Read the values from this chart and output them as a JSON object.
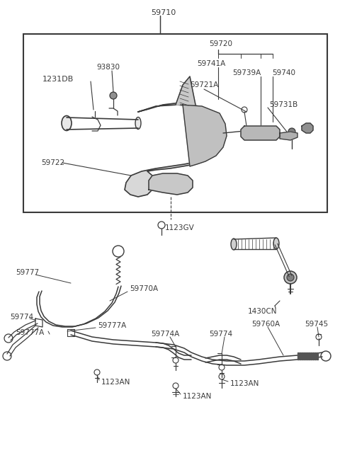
{
  "bg_color": "#ffffff",
  "line_color": "#3a3a3a",
  "label_color": "#3a3a3a",
  "fig_width": 4.8,
  "fig_height": 6.4,
  "dpi": 100
}
